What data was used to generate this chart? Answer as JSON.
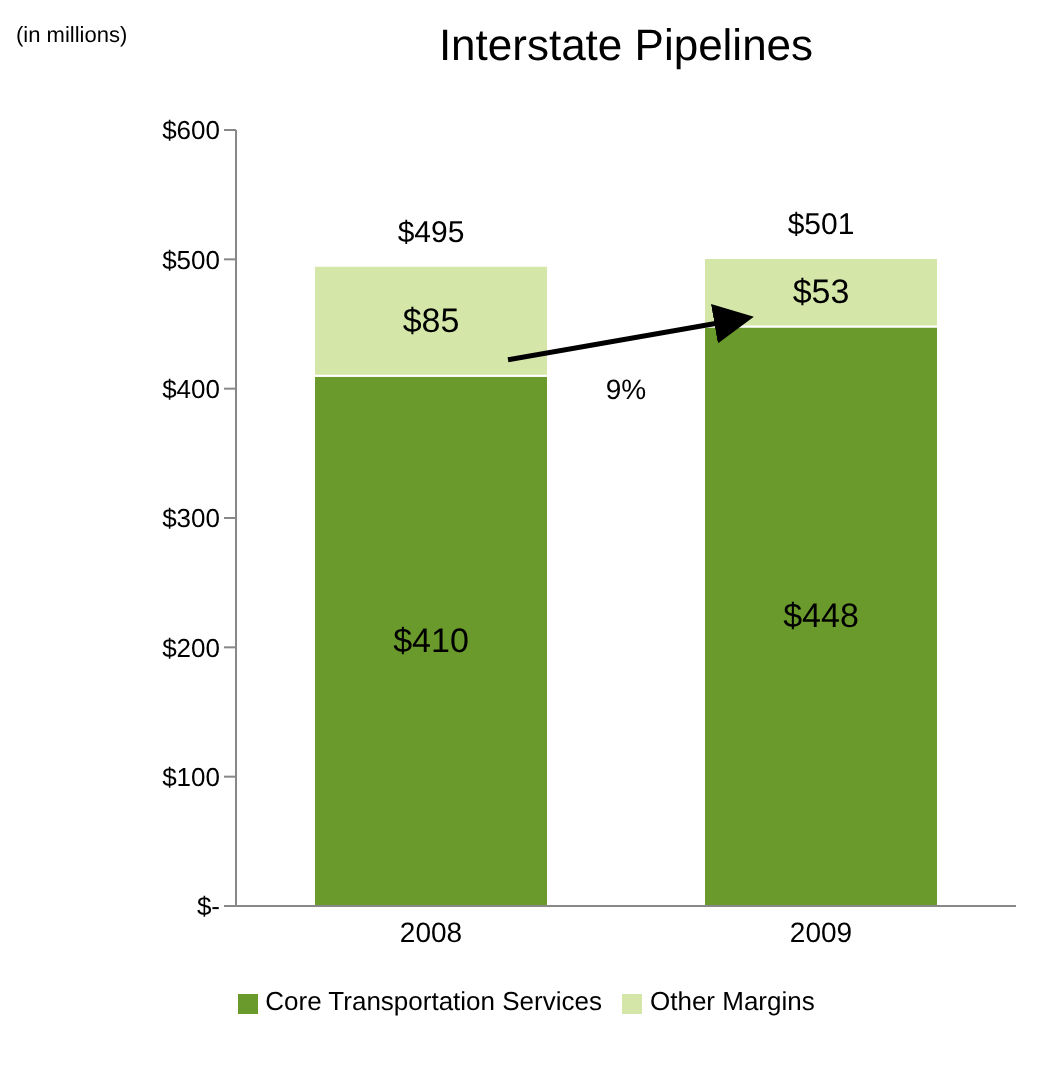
{
  "chart_data": {
    "type": "bar",
    "title": "Interstate Pipelines",
    "annotations": [
      "(in millions)",
      "9%"
    ],
    "categories": [
      "2008",
      "2009"
    ],
    "stacked": true,
    "series": [
      {
        "name": "Core Transportation Services",
        "color": "#6b9a2c",
        "values": [
          410,
          448
        ],
        "value_labels": [
          "$410",
          "$448"
        ]
      },
      {
        "name": "Other Margins",
        "color": "#d4e7a8",
        "values": [
          85,
          53
        ],
        "value_labels": [
          "$85",
          "$53"
        ]
      }
    ],
    "totals": [
      "$495",
      "$501"
    ],
    "ylim": [
      0,
      600
    ],
    "yticks": [
      {
        "value": 0,
        "label": "$-"
      },
      {
        "value": 100,
        "label": "$100"
      },
      {
        "value": 200,
        "label": "$200"
      },
      {
        "value": 300,
        "label": "$300"
      },
      {
        "value": 400,
        "label": "$400"
      },
      {
        "value": 500,
        "label": "$500"
      },
      {
        "value": 600,
        "label": "$600"
      }
    ],
    "grid": false,
    "legend": "bottom"
  }
}
